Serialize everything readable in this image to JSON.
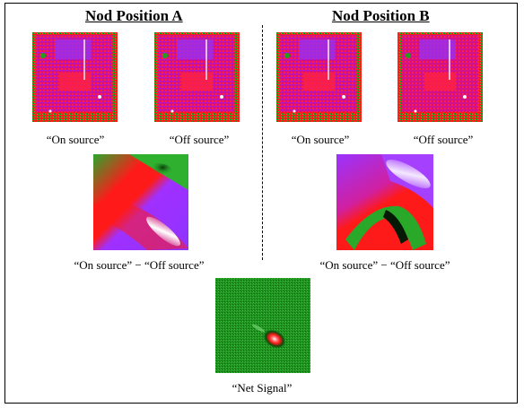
{
  "titles": {
    "nod_a": "Nod Position A",
    "nod_b": "Nod Position B"
  },
  "captions": {
    "a_on": "“On source”",
    "a_off": "“Off source”",
    "b_on": "“On source”",
    "b_off": "“Off source”",
    "a_diff": "“On source” − “Off source”",
    "b_diff": "“On source” − “Off source”",
    "net": "“Net Signal”"
  },
  "colors": {
    "magenta": "#e000a0",
    "red": "#ff1a1a",
    "green": "#1fa01f",
    "violet": "#9933ff",
    "white": "#ffffff",
    "black": "#000000"
  }
}
